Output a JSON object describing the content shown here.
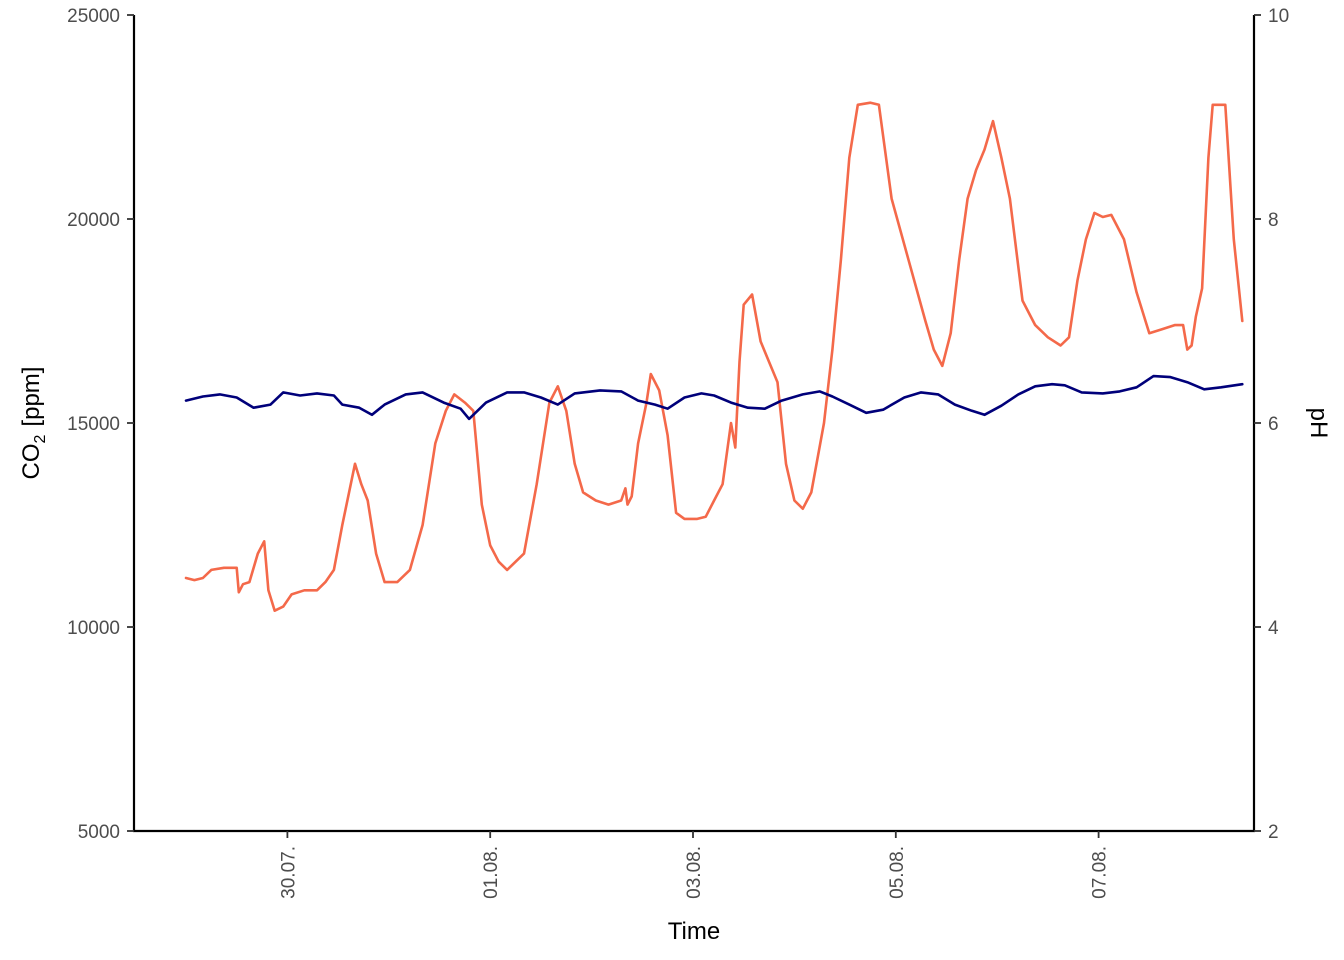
{
  "chart_data": {
    "type": "line",
    "xlabel": "Time",
    "ylabel_main": "CO",
    "ylabel_sub": "2",
    "ylabel_unit": "[ppm]",
    "y2label": "pH",
    "x_range": [
      "2018-07-29T00:00",
      "2018-08-08T00:00"
    ],
    "x_ticks": [
      {
        "date": "2018-07-30",
        "label": "30.07."
      },
      {
        "date": "2018-08-01",
        "label": "01.08."
      },
      {
        "date": "2018-08-03",
        "label": "03.08."
      },
      {
        "date": "2018-08-05",
        "label": "05.08."
      },
      {
        "date": "2018-08-07",
        "label": "07.08."
      }
    ],
    "ylim": [
      5000,
      25000
    ],
    "y_ticks": [
      5000,
      10000,
      15000,
      20000,
      25000
    ],
    "y2lim": [
      2,
      10
    ],
    "y2_ticks": [
      2,
      4,
      6,
      8,
      10
    ],
    "grid": false,
    "legend": "none",
    "series": [
      {
        "color": "#f4694a",
        "axis": "left",
        "points": [
          [
            "2018-07-29T00:00",
            11200
          ],
          [
            "2018-07-29T02:00",
            11150
          ],
          [
            "2018-07-29T04:00",
            11200
          ],
          [
            "2018-07-29T06:00",
            11400
          ],
          [
            "2018-07-29T09:00",
            11450
          ],
          [
            "2018-07-29T12:00",
            11450
          ],
          [
            "2018-07-29T12:30",
            10850
          ],
          [
            "2018-07-29T13:30",
            11050
          ],
          [
            "2018-07-29T15:00",
            11100
          ],
          [
            "2018-07-29T17:00",
            11800
          ],
          [
            "2018-07-29T18:30",
            12100
          ],
          [
            "2018-07-29T19:30",
            10900
          ],
          [
            "2018-07-29T21:00",
            10400
          ],
          [
            "2018-07-29T23:00",
            10500
          ],
          [
            "2018-07-30T01:00",
            10800
          ],
          [
            "2018-07-30T04:00",
            10900
          ],
          [
            "2018-07-30T07:00",
            10900
          ],
          [
            "2018-07-30T09:00",
            11100
          ],
          [
            "2018-07-30T11:00",
            11400
          ],
          [
            "2018-07-30T13:00",
            12500
          ],
          [
            "2018-07-30T16:00",
            14000
          ],
          [
            "2018-07-30T17:30",
            13500
          ],
          [
            "2018-07-30T19:00",
            13100
          ],
          [
            "2018-07-30T21:00",
            11800
          ],
          [
            "2018-07-30T23:00",
            11100
          ],
          [
            "2018-07-31T02:00",
            11100
          ],
          [
            "2018-07-31T05:00",
            11400
          ],
          [
            "2018-07-31T08:00",
            12500
          ],
          [
            "2018-07-31T11:00",
            14500
          ],
          [
            "2018-07-31T13:30",
            15300
          ],
          [
            "2018-07-31T15:30",
            15700
          ],
          [
            "2018-07-31T18:00",
            15500
          ],
          [
            "2018-07-31T20:00",
            15300
          ],
          [
            "2018-07-31T22:00",
            13000
          ],
          [
            "2018-08-01T00:00",
            12000
          ],
          [
            "2018-08-01T02:00",
            11600
          ],
          [
            "2018-08-01T04:00",
            11400
          ],
          [
            "2018-08-01T08:00",
            11800
          ],
          [
            "2018-08-01T11:00",
            13500
          ],
          [
            "2018-08-01T14:00",
            15500
          ],
          [
            "2018-08-01T16:00",
            15900
          ],
          [
            "2018-08-01T18:00",
            15300
          ],
          [
            "2018-08-01T20:00",
            14000
          ],
          [
            "2018-08-01T22:00",
            13300
          ],
          [
            "2018-08-02T01:00",
            13100
          ],
          [
            "2018-08-02T04:00",
            13000
          ],
          [
            "2018-08-02T07:00",
            13100
          ],
          [
            "2018-08-02T08:00",
            13400
          ],
          [
            "2018-08-02T08:30",
            13000
          ],
          [
            "2018-08-02T09:30",
            13200
          ],
          [
            "2018-08-02T11:00",
            14500
          ],
          [
            "2018-08-02T13:00",
            15500
          ],
          [
            "2018-08-02T14:00",
            16200
          ],
          [
            "2018-08-02T16:00",
            15800
          ],
          [
            "2018-08-02T18:00",
            14700
          ],
          [
            "2018-08-02T20:00",
            12800
          ],
          [
            "2018-08-02T22:00",
            12650
          ],
          [
            "2018-08-03T01:00",
            12650
          ],
          [
            "2018-08-03T03:00",
            12700
          ],
          [
            "2018-08-03T05:00",
            13100
          ],
          [
            "2018-08-03T07:00",
            13500
          ],
          [
            "2018-08-03T09:00",
            15000
          ],
          [
            "2018-08-03T10:00",
            14400
          ],
          [
            "2018-08-03T11:00",
            16500
          ],
          [
            "2018-08-03T12:00",
            17900
          ],
          [
            "2018-08-03T14:00",
            18150
          ],
          [
            "2018-08-03T16:00",
            17000
          ],
          [
            "2018-08-03T18:00",
            16500
          ],
          [
            "2018-08-03T20:00",
            16000
          ],
          [
            "2018-08-03T22:00",
            14000
          ],
          [
            "2018-08-04T00:00",
            13100
          ],
          [
            "2018-08-04T02:00",
            12900
          ],
          [
            "2018-08-04T04:00",
            13300
          ],
          [
            "2018-08-04T07:00",
            15000
          ],
          [
            "2018-08-04T09:00",
            16800
          ],
          [
            "2018-08-04T11:00",
            19000
          ],
          [
            "2018-08-04T13:00",
            21500
          ],
          [
            "2018-08-04T15:00",
            22800
          ],
          [
            "2018-08-04T18:00",
            22850
          ],
          [
            "2018-08-04T20:00",
            22800
          ],
          [
            "2018-08-04T23:00",
            20500
          ],
          [
            "2018-08-05T03:00",
            19000
          ],
          [
            "2018-08-05T07:00",
            17500
          ],
          [
            "2018-08-05T09:00",
            16800
          ],
          [
            "2018-08-05T11:00",
            16400
          ],
          [
            "2018-08-05T13:00",
            17200
          ],
          [
            "2018-08-05T15:00",
            19000
          ],
          [
            "2018-08-05T17:00",
            20500
          ],
          [
            "2018-08-05T19:00",
            21200
          ],
          [
            "2018-08-05T21:00",
            21700
          ],
          [
            "2018-08-05T23:00",
            22400
          ],
          [
            "2018-08-06T01:00",
            21500
          ],
          [
            "2018-08-06T03:00",
            20500
          ],
          [
            "2018-08-06T06:00",
            18000
          ],
          [
            "2018-08-06T09:00",
            17400
          ],
          [
            "2018-08-06T12:00",
            17100
          ],
          [
            "2018-08-06T15:00",
            16900
          ],
          [
            "2018-08-06T17:00",
            17100
          ],
          [
            "2018-08-06T19:00",
            18500
          ],
          [
            "2018-08-06T21:00",
            19500
          ],
          [
            "2018-08-06T23:00",
            20150
          ],
          [
            "2018-08-07T01:00",
            20050
          ],
          [
            "2018-08-07T03:00",
            20100
          ],
          [
            "2018-08-07T06:00",
            19500
          ],
          [
            "2018-08-07T09:00",
            18200
          ],
          [
            "2018-08-07T12:00",
            17200
          ],
          [
            "2018-08-07T15:00",
            17300
          ],
          [
            "2018-08-07T18:00",
            17400
          ],
          [
            "2018-08-07T20:00",
            17400
          ],
          [
            "2018-08-07T21:00",
            16800
          ],
          [
            "2018-08-07T22:00",
            16900
          ],
          [
            "2018-08-07T23:00",
            17600
          ],
          [
            "2018-08-08T00:30",
            18300
          ],
          [
            "2018-08-08T02:00",
            21500
          ],
          [
            "2018-08-08T03:00",
            22800
          ],
          [
            "2018-08-08T06:00",
            22800
          ],
          [
            "2018-08-08T08:00",
            19500
          ],
          [
            "2018-08-08T10:00",
            17500
          ]
        ]
      },
      {
        "color": "#00007a",
        "axis": "right",
        "points": [
          [
            "2018-07-29T00:00",
            6.22
          ],
          [
            "2018-07-29T04:00",
            6.26
          ],
          [
            "2018-07-29T08:00",
            6.28
          ],
          [
            "2018-07-29T12:00",
            6.25
          ],
          [
            "2018-07-29T16:00",
            6.15
          ],
          [
            "2018-07-29T20:00",
            6.18
          ],
          [
            "2018-07-29T23:00",
            6.3
          ],
          [
            "2018-07-30T03:00",
            6.27
          ],
          [
            "2018-07-30T07:00",
            6.29
          ],
          [
            "2018-07-30T11:00",
            6.27
          ],
          [
            "2018-07-30T13:00",
            6.18
          ],
          [
            "2018-07-30T17:00",
            6.15
          ],
          [
            "2018-07-30T20:00",
            6.08
          ],
          [
            "2018-07-30T23:00",
            6.18
          ],
          [
            "2018-07-31T04:00",
            6.28
          ],
          [
            "2018-07-31T08:00",
            6.3
          ],
          [
            "2018-07-31T13:00",
            6.2
          ],
          [
            "2018-07-31T17:00",
            6.14
          ],
          [
            "2018-07-31T19:00",
            6.04
          ],
          [
            "2018-07-31T23:00",
            6.2
          ],
          [
            "2018-08-01T04:00",
            6.3
          ],
          [
            "2018-08-01T08:00",
            6.3
          ],
          [
            "2018-08-01T12:00",
            6.25
          ],
          [
            "2018-08-01T16:00",
            6.18
          ],
          [
            "2018-08-01T20:00",
            6.29
          ],
          [
            "2018-08-02T02:00",
            6.32
          ],
          [
            "2018-08-02T07:00",
            6.31
          ],
          [
            "2018-08-02T11:00",
            6.22
          ],
          [
            "2018-08-02T15:00",
            6.18
          ],
          [
            "2018-08-02T18:00",
            6.14
          ],
          [
            "2018-08-02T22:00",
            6.25
          ],
          [
            "2018-08-03T02:00",
            6.29
          ],
          [
            "2018-08-03T05:00",
            6.27
          ],
          [
            "2018-08-03T09:00",
            6.2
          ],
          [
            "2018-08-03T13:00",
            6.15
          ],
          [
            "2018-08-03T17:00",
            6.14
          ],
          [
            "2018-08-03T21:00",
            6.22
          ],
          [
            "2018-08-04T02:00",
            6.28
          ],
          [
            "2018-08-04T06:00",
            6.31
          ],
          [
            "2018-08-04T09:00",
            6.26
          ],
          [
            "2018-08-04T13:00",
            6.18
          ],
          [
            "2018-08-04T17:00",
            6.1
          ],
          [
            "2018-08-04T21:00",
            6.13
          ],
          [
            "2018-08-05T02:00",
            6.25
          ],
          [
            "2018-08-05T06:00",
            6.3
          ],
          [
            "2018-08-05T10:00",
            6.28
          ],
          [
            "2018-08-05T14:00",
            6.18
          ],
          [
            "2018-08-05T18:00",
            6.12
          ],
          [
            "2018-08-05T21:00",
            6.08
          ],
          [
            "2018-08-06T01:00",
            6.17
          ],
          [
            "2018-08-06T05:00",
            6.28
          ],
          [
            "2018-08-06T09:00",
            6.36
          ],
          [
            "2018-08-06T13:00",
            6.38
          ],
          [
            "2018-08-06T16:00",
            6.37
          ],
          [
            "2018-08-06T20:00",
            6.3
          ],
          [
            "2018-08-07T01:00",
            6.29
          ],
          [
            "2018-08-07T05:00",
            6.31
          ],
          [
            "2018-08-07T09:00",
            6.35
          ],
          [
            "2018-08-07T13:00",
            6.46
          ],
          [
            "2018-08-07T17:00",
            6.45
          ],
          [
            "2018-08-07T21:00",
            6.4
          ],
          [
            "2018-08-08T01:00",
            6.33
          ],
          [
            "2018-08-08T05:00",
            6.35
          ],
          [
            "2018-08-08T10:00",
            6.38
          ]
        ]
      }
    ]
  }
}
